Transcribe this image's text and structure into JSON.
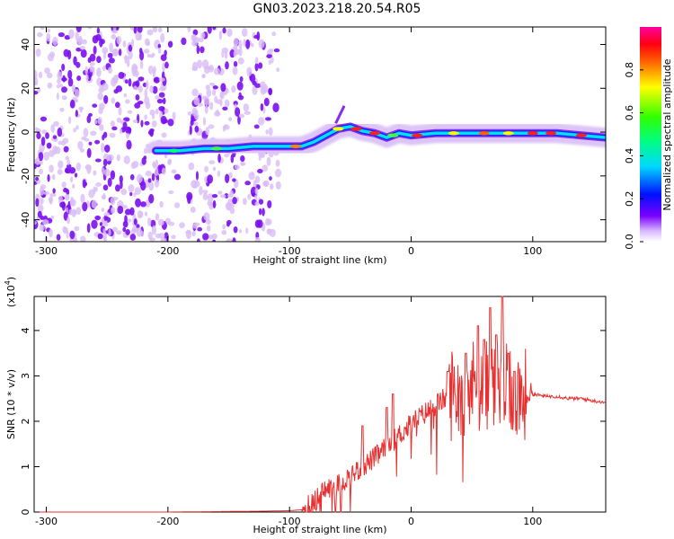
{
  "title": "GN03.2023.218.20.54.R05",
  "colors": {
    "snr_line": "#e83030",
    "axis": "#000000"
  },
  "chart_data": [
    {
      "type": "heatmap",
      "xlabel": "Height of straight line (km)",
      "ylabel": "Frequency (Hz)",
      "xlim": [
        -310,
        160
      ],
      "ylim": [
        -50,
        48
      ],
      "xticks": [
        -300,
        -200,
        -100,
        0,
        100
      ],
      "yticks": [
        40,
        20,
        0,
        -20,
        -40
      ],
      "ridge": {
        "description_points_x": [
          -210,
          -190,
          -170,
          -150,
          -130,
          -110,
          -100,
          -90,
          -80,
          -70,
          -60,
          -50,
          -40,
          -30,
          -20,
          -10,
          0,
          20,
          40,
          60,
          80,
          100,
          120,
          140,
          160
        ],
        "frequency_hz": [
          -8,
          -8,
          -7,
          -7,
          -6,
          -6,
          -6,
          -6,
          -4,
          -1,
          2,
          3,
          1,
          0,
          -2,
          0,
          -1,
          0,
          0,
          0,
          0,
          0,
          0,
          -1,
          -2
        ]
      },
      "colorbar": {
        "label": "Normalized spectral amplitude",
        "range": [
          0.0,
          1.0
        ],
        "ticks": [
          0.0,
          0.2,
          0.4,
          0.6,
          0.8
        ],
        "tick_labels": [
          "0.0",
          "0.2",
          "0.4",
          "0.6",
          "0.8"
        ]
      }
    },
    {
      "type": "line",
      "xlabel": "Height of straight line (km)",
      "ylabel": "SNR (10 * v/v)",
      "scale_label": "(x10",
      "scale_exp": "4",
      "scale_close": ")",
      "xlim": [
        -310,
        160
      ],
      "ylim": [
        0,
        4.75
      ],
      "xticks": [
        -300,
        -200,
        -100,
        0,
        100
      ],
      "yticks": [
        0,
        1,
        2,
        3,
        4
      ],
      "series": [
        {
          "x": [
            -310,
            -200,
            -120,
            -100,
            -90,
            -80,
            -75,
            -70,
            -65,
            -60,
            -55,
            -50,
            -45,
            -40,
            -35,
            -30,
            -25,
            -20,
            -15,
            -10,
            -5,
            0,
            5,
            10,
            15,
            20,
            25,
            30,
            35,
            40,
            45,
            50,
            55,
            60,
            65,
            70,
            75,
            80,
            85,
            90,
            95,
            100,
            110,
            120,
            130,
            140,
            150,
            160
          ],
          "y": [
            0.0,
            0.0,
            0.02,
            0.03,
            0.05,
            0.2,
            0.4,
            0.5,
            0.55,
            0.6,
            0.7,
            0.8,
            0.9,
            1.0,
            1.1,
            1.2,
            1.3,
            1.45,
            1.55,
            1.7,
            1.8,
            1.95,
            2.05,
            2.15,
            2.25,
            2.35,
            2.45,
            2.55,
            2.65,
            2.7,
            2.75,
            2.8,
            2.8,
            2.75,
            2.75,
            2.7,
            2.7,
            2.65,
            2.65,
            2.6,
            2.6,
            2.6,
            2.55,
            2.55,
            2.5,
            2.5,
            2.45,
            2.42
          ],
          "peaks": [
            [
              -40,
              1.9
            ],
            [
              -20,
              2.3
            ],
            [
              -15,
              2.6
            ],
            [
              30,
              3.1
            ],
            [
              45,
              3.5
            ],
            [
              55,
              4.1
            ],
            [
              60,
              3.8
            ],
            [
              65,
              4.5
            ],
            [
              70,
              3.9
            ],
            [
              75,
              4.75
            ],
            [
              80,
              3.5
            ],
            [
              85,
              3.1
            ]
          ]
        }
      ]
    }
  ]
}
